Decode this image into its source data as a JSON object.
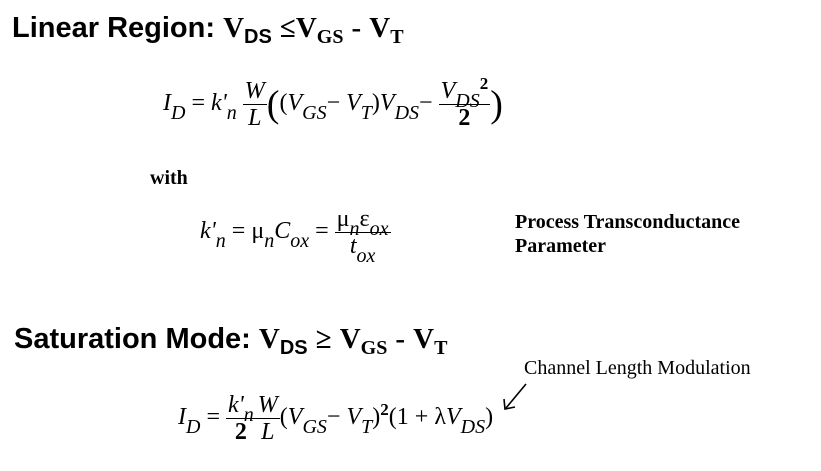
{
  "linear": {
    "heading_label": "Linear Region:",
    "V": "V",
    "DS": "DS",
    "le": "≤",
    "GS": "GS",
    "minus": "-",
    "T": "T"
  },
  "eq1": {
    "I": "I",
    "D": "D",
    "eq": "=",
    "k": "k'",
    "n": "n",
    "W": "W",
    "L": "L",
    "lp": "(",
    "V_GS": "V",
    "GS": "GS",
    "minus": "−",
    "V_T": "V",
    "T": "T",
    "rp": ")",
    "V_DS": "V",
    "DS": "DS",
    "minus2": "−",
    "num_V": "V",
    "num_DS": "DS",
    "sq": "2",
    "den": "2"
  },
  "with_label": "with",
  "eq2": {
    "k": "k'",
    "n": "n",
    "eq": "=",
    "mu": "μ",
    "mu_n": "n",
    "C": "C",
    "ox": "ox",
    "eq2": "=",
    "num_mu": "μ",
    "num_n": "n",
    "eps": "ε",
    "num_ox": "ox",
    "t": "t",
    "t_ox": "ox"
  },
  "process_label": {
    "line1": "Process Transconductance",
    "line2": "Parameter"
  },
  "saturation": {
    "heading_label": "Saturation Mode:",
    "V": "V",
    "DS": "DS",
    "ge": "≥",
    "GS": "GS",
    "minus": "-",
    "T": "T"
  },
  "clm_label": "Channel  Length  Modulation",
  "eq3": {
    "I": "I",
    "D": "D",
    "eq": "=",
    "k": "k'",
    "n": "n",
    "den": "2",
    "W": "W",
    "L": "L",
    "lp": "(",
    "V_GS": "V",
    "GS": "GS",
    "minus": "−",
    "V_T": "V",
    "T": "T",
    "rp": ")",
    "sq": "2",
    "lp2": "(",
    "one": "1",
    "plus": "+",
    "lambda": "λ",
    "V_DS": "V",
    "DS": "DS",
    "rp2": ")"
  }
}
